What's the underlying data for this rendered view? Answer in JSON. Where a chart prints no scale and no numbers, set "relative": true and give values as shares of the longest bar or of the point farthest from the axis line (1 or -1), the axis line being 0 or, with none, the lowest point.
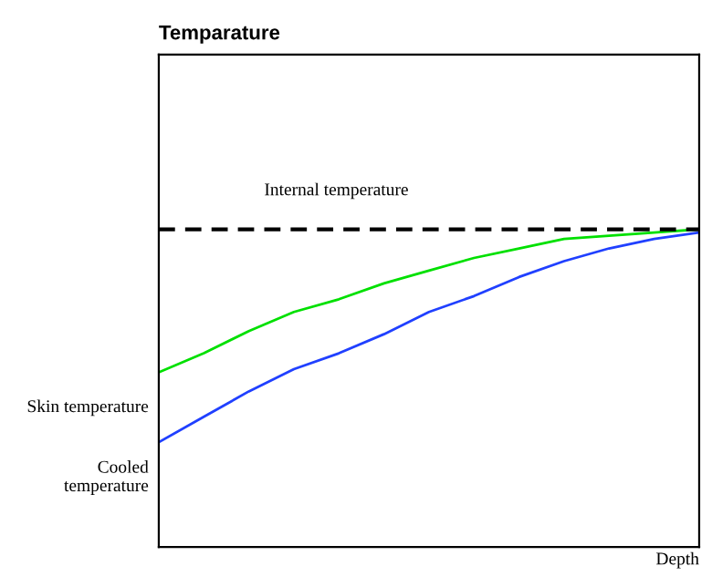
{
  "chart_data": {
    "type": "line",
    "title": "Temparature",
    "xlabel": "Depth",
    "relative": true,
    "categories": [
      null,
      null,
      null,
      null,
      null,
      null,
      null,
      null,
      null,
      null,
      null,
      null,
      null
    ],
    "series": [
      {
        "name": "Skin temperature",
        "color": "#00e000",
        "values": [
          0.55,
          0.61,
          0.68,
          0.74,
          0.78,
          0.83,
          0.87,
          0.91,
          0.94,
          0.97,
          0.98,
          0.99,
          1.0
        ]
      },
      {
        "name": "Cooled temperature",
        "color": "#2040ff",
        "values": [
          0.33,
          0.41,
          0.49,
          0.56,
          0.61,
          0.67,
          0.74,
          0.79,
          0.85,
          0.9,
          0.94,
          0.97,
          0.99
        ]
      }
    ],
    "ref_lines": [
      {
        "axis": "y",
        "value": 1,
        "label": "Internal temperature",
        "color": "#000000",
        "line_style": "dashed"
      }
    ],
    "legend": false
  }
}
